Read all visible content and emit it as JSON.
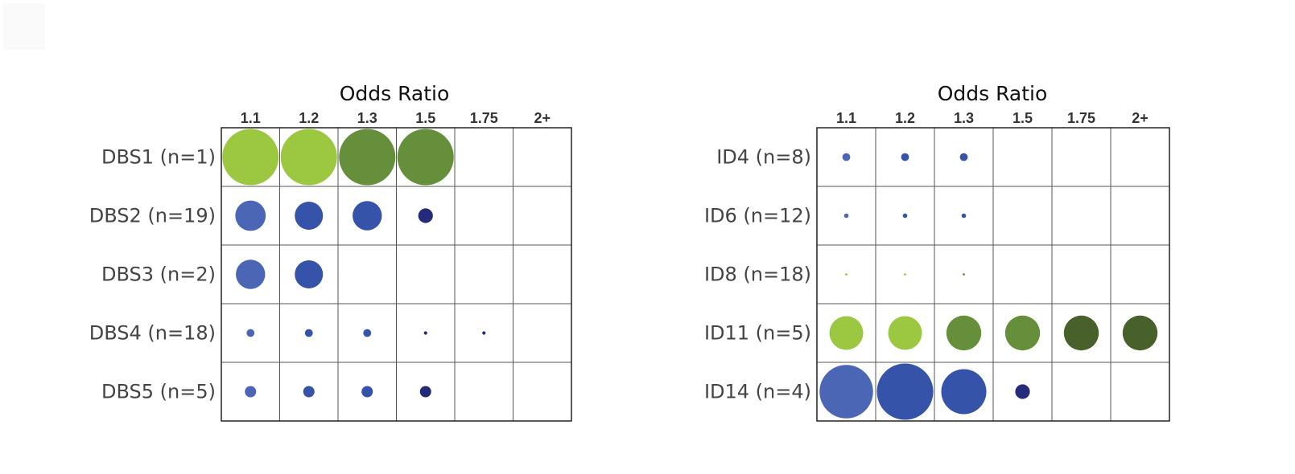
{
  "chart_data": [
    {
      "type": "bubble-matrix",
      "title": "Odds Ratio",
      "x_categories": [
        "1.1",
        "1.2",
        "1.3",
        "1.5",
        "1.75",
        "2+"
      ],
      "rows": [
        {
          "label": "DBS1 (n=1)",
          "values": [
            1.0,
            1.0,
            1.0,
            1.0,
            null,
            null
          ],
          "colors": [
            "#9bc840",
            "#9bc840",
            "#658f3b",
            "#658f3b",
            null,
            null
          ]
        },
        {
          "label": "DBS2 (n=19)",
          "values": [
            0.54,
            0.5,
            0.52,
            0.26,
            null,
            null
          ],
          "colors": [
            "#4a66b5",
            "#3553a8",
            "#3553a8",
            "#252a7b",
            null,
            null
          ]
        },
        {
          "label": "DBS3 (n=2)",
          "values": [
            0.52,
            0.5,
            null,
            null,
            null,
            null
          ],
          "colors": [
            "#4a66b5",
            "#3553a8",
            null,
            null,
            null,
            null
          ]
        },
        {
          "label": "DBS4 (n=18)",
          "values": [
            0.14,
            0.14,
            0.14,
            0.06,
            0.06,
            null
          ],
          "colors": [
            "#4a66b5",
            "#3553a8",
            "#3553a8",
            "#252a7b",
            "#252a7b",
            null
          ]
        },
        {
          "label": "DBS5 (n=5)",
          "values": [
            0.2,
            0.2,
            0.2,
            0.2,
            null,
            null
          ],
          "colors": [
            "#4a66b5",
            "#3553a8",
            "#3553a8",
            "#252a7b",
            null,
            null
          ]
        }
      ]
    },
    {
      "type": "bubble-matrix",
      "title": "Odds Ratio",
      "x_categories": [
        "1.1",
        "1.2",
        "1.3",
        "1.5",
        "1.75",
        "2+"
      ],
      "rows": [
        {
          "label": "ID4 (n=8)",
          "values": [
            0.14,
            0.14,
            0.14,
            null,
            null,
            null
          ],
          "colors": [
            "#4a66b5",
            "#3553a8",
            "#3553a8",
            null,
            null,
            null
          ]
        },
        {
          "label": "ID6 (n=12)",
          "values": [
            0.08,
            0.08,
            0.08,
            null,
            null,
            null
          ],
          "colors": [
            "#4a66b5",
            "#3553a8",
            "#3553a8",
            null,
            null,
            null
          ]
        },
        {
          "label": "ID8 (n=18)",
          "values": [
            0.04,
            0.04,
            0.04,
            null,
            null,
            null
          ],
          "colors": [
            "#9bc840",
            "#9bc840",
            "#658f3b",
            null,
            null,
            null
          ]
        },
        {
          "label": "ID11 (n=5)",
          "values": [
            0.6,
            0.6,
            0.62,
            0.62,
            0.62,
            0.62
          ],
          "colors": [
            "#9bc840",
            "#9bc840",
            "#658f3b",
            "#658f3b",
            "#48612b",
            "#48612b"
          ]
        },
        {
          "label": "ID14 (n=4)",
          "values": [
            0.95,
            1.0,
            0.8,
            0.26,
            null,
            null
          ],
          "colors": [
            "#4a66b5",
            "#3553a8",
            "#3553a8",
            "#252a7b",
            null,
            null
          ]
        }
      ]
    }
  ]
}
